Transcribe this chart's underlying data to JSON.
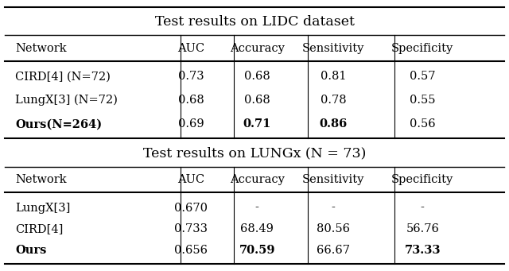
{
  "title1": "Test results on LIDC dataset",
  "title2": "Test results on LUNGx (N = 73)",
  "headers": [
    "Network",
    "AUC",
    "Accuracy",
    "Sensitivity",
    "Specificity"
  ],
  "table1_rows": [
    [
      "CIRD[4] (N=72)",
      "0.73",
      "0.68",
      "0.81",
      "0.57"
    ],
    [
      "LungX[3] (N=72)",
      "0.68",
      "0.68",
      "0.78",
      "0.55"
    ],
    [
      "Ours(N=264)",
      "0.69",
      "0.71",
      "0.86",
      "0.56"
    ]
  ],
  "table1_bold": [
    [
      false,
      false,
      false,
      false,
      false
    ],
    [
      false,
      false,
      false,
      false,
      false
    ],
    [
      true,
      false,
      true,
      true,
      false
    ]
  ],
  "table2_rows": [
    [
      "LungX[3]",
      "0.670",
      "-",
      "-",
      "-"
    ],
    [
      "CIRD[4]",
      "0.733",
      "68.49",
      "80.56",
      "56.76"
    ],
    [
      "Ours",
      "0.656",
      "70.59",
      "66.67",
      "73.33"
    ]
  ],
  "table2_bold": [
    [
      false,
      false,
      false,
      false,
      false
    ],
    [
      false,
      false,
      false,
      false,
      false
    ],
    [
      true,
      false,
      true,
      false,
      true
    ]
  ],
  "bg_color": "#ffffff",
  "text_color": "#000000",
  "font_size": 10.5,
  "title_font_size": 12.5
}
